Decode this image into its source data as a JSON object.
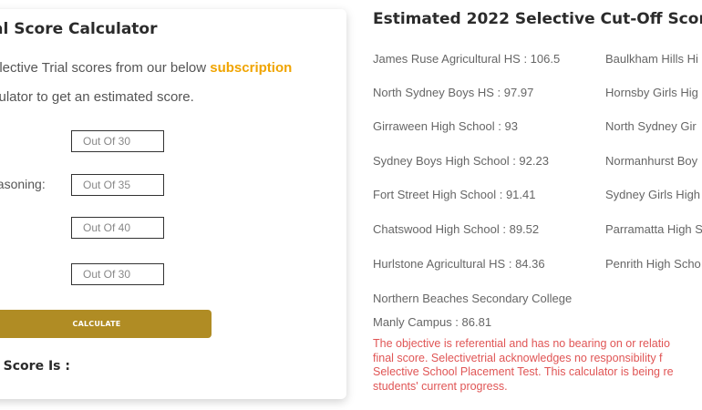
{
  "calculator": {
    "title": "al Score Calculator",
    "intro_line1_prefix": "elective Trial scores from our below ",
    "intro_highlight": "subscription",
    "intro_line2": "culator to get an estimated score.",
    "reasoning_label": "easoning:",
    "inputs": [
      {
        "placeholder": "Out Of 30"
      },
      {
        "placeholder": "Out Of 35"
      },
      {
        "placeholder": "Out Of 40"
      },
      {
        "placeholder": "Out Of 30"
      }
    ],
    "calculate_label": "CALCULATE",
    "final_score_label": "l Score Is :",
    "highlight_color": "#f0a400",
    "button_color": "#b08c24"
  },
  "cutoffs": {
    "title": "Estimated 2022 Selective Cut-Off Scores",
    "left_column": [
      "James Ruse Agricultural HS : 106.5",
      "North Sydney Boys HS : 97.97",
      "Girraween High School : 93",
      "Sydney Boys High School : 92.23",
      "Fort Street High School : 91.41",
      "Chatswood High School : 89.52",
      "Hurlstone Agricultural HS : 84.36",
      "Northern Beaches Secondary College",
      "Manly Campus : 86.81"
    ],
    "right_column": [
      "Baulkham Hills Hi",
      "Hornsby Girls Hig",
      "North Sydney Gir",
      "Normanhurst Boy",
      "Sydney Girls High",
      "Parramatta High S",
      "Penrith High Scho"
    ],
    "disclaimer_lines": [
      "The objective is referential and has no bearing on or relatio",
      "final score. Selectivetrial acknowledges no responsibility f",
      "Selective School Placement Test. This calculator is being re",
      "students' current progress."
    ],
    "disclaimer_color": "#e05555"
  }
}
